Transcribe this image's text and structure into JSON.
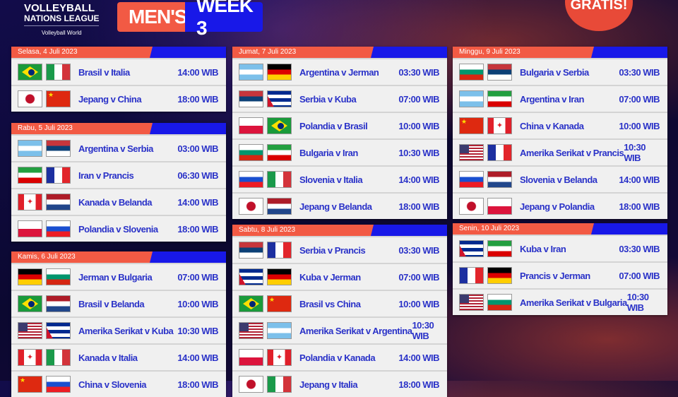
{
  "header": {
    "brand_line1": "VOLLEYBALL",
    "brand_line2": "NATIONS LEAGUE",
    "brand_sub": "Volleyball World",
    "badge_left": "MEN'S",
    "badge_right": "WEEK 3",
    "promo": "GRATIS!"
  },
  "colors": {
    "orange": "#f25a44",
    "blue": "#1818e8",
    "text": "#2a32c8"
  },
  "columns": [
    [
      {
        "day": "Selasa, 4 Juli 2023",
        "matches": [
          {
            "flags": [
              "brazil",
              "italy"
            ],
            "match": "Brasil v Italia",
            "time": "14:00 WIB"
          },
          {
            "flags": [
              "japan",
              "china"
            ],
            "match": "Jepang v China",
            "time": "18:00 WIB"
          }
        ]
      },
      {
        "day": "Rabu, 5 Juli 2023",
        "matches": [
          {
            "flags": [
              "argentina",
              "serbia"
            ],
            "match": "Argentina v Serbia",
            "time": "03:00 WIB"
          },
          {
            "flags": [
              "iran",
              "france"
            ],
            "match": "Iran v Prancis",
            "time": "06:30 WIB"
          },
          {
            "flags": [
              "canada",
              "netherlands"
            ],
            "match": "Kanada v Belanda",
            "time": "14:00 WIB"
          },
          {
            "flags": [
              "poland",
              "slovenia"
            ],
            "match": "Polandia v Slovenia",
            "time": "18:00 WIB"
          }
        ]
      },
      {
        "day": "Kamis, 6 Juli 2023",
        "matches": [
          {
            "flags": [
              "germany",
              "bulgaria"
            ],
            "match": "Jerman v Bulgaria",
            "time": "07:00 WIB"
          },
          {
            "flags": [
              "brazil",
              "netherlands"
            ],
            "match": "Brasil v Belanda",
            "time": "10:00 WIB"
          },
          {
            "flags": [
              "usa",
              "cuba"
            ],
            "match": "Amerika Serikat v Kuba",
            "time": "10:30 WIB"
          },
          {
            "flags": [
              "canada",
              "italy"
            ],
            "match": "Kanada v Italia",
            "time": "14:00 WIB"
          },
          {
            "flags": [
              "china",
              "slovenia"
            ],
            "match": "China v Slovenia",
            "time": "18:00 WIB"
          }
        ]
      }
    ],
    [
      {
        "day": "Jumat, 7 Juli 2023",
        "matches": [
          {
            "flags": [
              "argentina",
              "germany"
            ],
            "match": "Argentina v Jerman",
            "time": "03:30 WIB"
          },
          {
            "flags": [
              "serbia",
              "cuba"
            ],
            "match": "Serbia v Kuba",
            "time": "07:00 WIB"
          },
          {
            "flags": [
              "poland",
              "brazil"
            ],
            "match": "Polandia v Brasil",
            "time": "10:00 WIB"
          },
          {
            "flags": [
              "bulgaria",
              "iran"
            ],
            "match": "Bulgaria v Iran",
            "time": "10:30 WIB"
          },
          {
            "flags": [
              "slovenia",
              "italy"
            ],
            "match": "Slovenia v Italia",
            "time": "14:00 WIB"
          },
          {
            "flags": [
              "japan",
              "netherlands"
            ],
            "match": "Jepang v Belanda",
            "time": "18:00 WIB"
          }
        ]
      },
      {
        "day": "Sabtu, 8 Juli 2023",
        "matches": [
          {
            "flags": [
              "serbia",
              "france"
            ],
            "match": "Serbia v Prancis",
            "time": "03:30 WIB"
          },
          {
            "flags": [
              "cuba",
              "germany"
            ],
            "match": "Kuba v Jerman",
            "time": "07:00 WIB"
          },
          {
            "flags": [
              "brazil",
              "china"
            ],
            "match": "Brasil vs China",
            "time": "10:00 WIB"
          },
          {
            "flags": [
              "usa",
              "argentina"
            ],
            "match": "Amerika Serikat v Argentina",
            "time": "10:30 WIB"
          },
          {
            "flags": [
              "poland",
              "canada"
            ],
            "match": "Polandia v Kanada",
            "time": "14:00 WIB"
          },
          {
            "flags": [
              "japan",
              "italy"
            ],
            "match": "Jepang v Italia",
            "time": "18:00 WIB"
          }
        ]
      }
    ],
    [
      {
        "day": "Minggu, 9 Juli 2023",
        "matches": [
          {
            "flags": [
              "bulgaria",
              "serbia"
            ],
            "match": "Bulgaria v Serbia",
            "time": "03:30 WIB"
          },
          {
            "flags": [
              "argentina",
              "iran"
            ],
            "match": "Argentina v Iran",
            "time": "07:00 WIB"
          },
          {
            "flags": [
              "china",
              "canada"
            ],
            "match": "China v Kanada",
            "time": "10:00 WIB"
          },
          {
            "flags": [
              "usa",
              "france"
            ],
            "match": "Amerika Serikat v Prancis",
            "time": "10:30 WIB"
          },
          {
            "flags": [
              "slovenia",
              "netherlands"
            ],
            "match": "Slovenia v Belanda",
            "time": "14:00 WIB"
          },
          {
            "flags": [
              "japan",
              "poland"
            ],
            "match": "Jepang v Polandia",
            "time": "18:00 WIB"
          }
        ]
      },
      {
        "day": "Senin, 10 Juli 2023",
        "matches": [
          {
            "flags": [
              "cuba",
              "iran"
            ],
            "match": "Kuba v Iran",
            "time": "03:30 WIB"
          },
          {
            "flags": [
              "france",
              "germany"
            ],
            "match": "Prancis v Jerman",
            "time": "07:00 WIB"
          },
          {
            "flags": [
              "usa",
              "bulgaria"
            ],
            "match": "Amerika Serikat v Bulgaria",
            "time": "10:30 WIB"
          }
        ]
      }
    ]
  ]
}
